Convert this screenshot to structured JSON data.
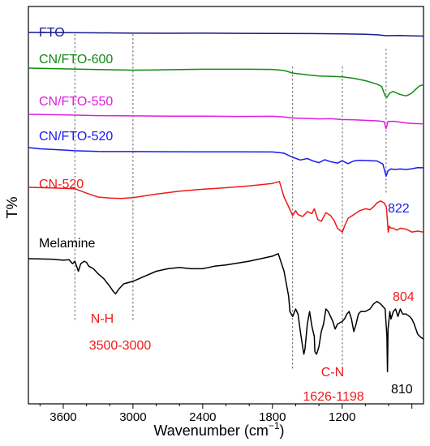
{
  "chart_data": {
    "type": "line",
    "xlabel": "Wavenumber (cm",
    "xlabel_sup": "−1",
    "xlabel_close": ")",
    "ylabel": "T%",
    "xlim": [
      3900,
      500
    ],
    "x_reversed": true,
    "x_ticks": [
      3600,
      3000,
      2400,
      1800,
      1200
    ],
    "x_tick_labels": [
      "3600",
      "3000",
      "2400",
      "1800",
      "1200"
    ],
    "y_axis_ticks": false,
    "grid": false,
    "legend": "none",
    "reference_lines_cm1": [
      3500,
      3000,
      1626,
      1198,
      822
    ],
    "series": [
      {
        "name": "FTO",
        "color": "#1a1a8c",
        "label_color": "#1a1a8c",
        "points": [
          [
            3900,
            0.0
          ],
          [
            3600,
            0.2
          ],
          [
            3300,
            0.6
          ],
          [
            3000,
            1.0
          ],
          [
            2700,
            1.1
          ],
          [
            2400,
            1.0
          ],
          [
            2100,
            1.2
          ],
          [
            1800,
            1.3
          ],
          [
            1500,
            1.6
          ],
          [
            1200,
            2.0
          ],
          [
            1000,
            2.6
          ],
          [
            900,
            3.2
          ],
          [
            822,
            4.5
          ],
          [
            700,
            4.2
          ],
          [
            600,
            4.8
          ],
          [
            500,
            5.0
          ]
        ]
      },
      {
        "name": "CN/FTO-600",
        "color": "#138a13",
        "label_color": "#138a13",
        "points": [
          [
            3900,
            0.0
          ],
          [
            3600,
            0.5
          ],
          [
            3300,
            1.0
          ],
          [
            3000,
            1.4
          ],
          [
            2800,
            1.2
          ],
          [
            2600,
            1.0
          ],
          [
            2400,
            0.8
          ],
          [
            2200,
            0.8
          ],
          [
            2000,
            0.8
          ],
          [
            1800,
            0.9
          ],
          [
            1700,
            1.6
          ],
          [
            1626,
            3.4
          ],
          [
            1500,
            4.6
          ],
          [
            1400,
            5.4
          ],
          [
            1300,
            5.6
          ],
          [
            1200,
            6.0
          ],
          [
            1100,
            7.0
          ],
          [
            1000,
            8.6
          ],
          [
            900,
            11.0
          ],
          [
            860,
            12.5
          ],
          [
            830,
            19.0
          ],
          [
            815,
            20.0
          ],
          [
            790,
            17.0
          ],
          [
            760,
            16.0
          ],
          [
            720,
            17.5
          ],
          [
            680,
            18.5
          ],
          [
            650,
            19.0
          ],
          [
            620,
            18.0
          ],
          [
            600,
            17.0
          ],
          [
            560,
            14.0
          ],
          [
            530,
            12.0
          ],
          [
            500,
            11.5
          ]
        ]
      },
      {
        "name": "CN/FTO-550",
        "color": "#e01ce0",
        "label_color": "#e01ce0",
        "points": [
          [
            3900,
            0.0
          ],
          [
            3600,
            0.4
          ],
          [
            3300,
            1.0
          ],
          [
            3000,
            1.2
          ],
          [
            2700,
            1.4
          ],
          [
            2400,
            1.4
          ],
          [
            2100,
            1.6
          ],
          [
            1800,
            1.5
          ],
          [
            1700,
            2.0
          ],
          [
            1626,
            2.8
          ],
          [
            1500,
            3.2
          ],
          [
            1400,
            3.5
          ],
          [
            1300,
            3.4
          ],
          [
            1200,
            4.0
          ],
          [
            1100,
            4.2
          ],
          [
            1000,
            4.6
          ],
          [
            900,
            5.0
          ],
          [
            840,
            5.6
          ],
          [
            822,
            11.0
          ],
          [
            805,
            5.5
          ],
          [
            750,
            5.4
          ],
          [
            700,
            6.0
          ],
          [
            650,
            6.6
          ],
          [
            600,
            7.0
          ],
          [
            550,
            7.2
          ],
          [
            500,
            7.3
          ]
        ]
      },
      {
        "name": "CN/FTO-520",
        "color": "#1a1aee",
        "label_color": "#1a1aee",
        "points": [
          [
            3900,
            0.0
          ],
          [
            3800,
            1.0
          ],
          [
            3600,
            2.0
          ],
          [
            3500,
            2.6
          ],
          [
            3300,
            3.2
          ],
          [
            3000,
            3.3
          ],
          [
            2700,
            3.4
          ],
          [
            2400,
            3.5
          ],
          [
            2100,
            3.5
          ],
          [
            1800,
            3.6
          ],
          [
            1700,
            4.6
          ],
          [
            1626,
            8.0
          ],
          [
            1560,
            10.2
          ],
          [
            1500,
            9.0
          ],
          [
            1450,
            11.0
          ],
          [
            1400,
            12.4
          ],
          [
            1350,
            10.0
          ],
          [
            1300,
            11.6
          ],
          [
            1240,
            12.8
          ],
          [
            1200,
            10.8
          ],
          [
            1150,
            13.2
          ],
          [
            1100,
            11.0
          ],
          [
            1050,
            10.4
          ],
          [
            1000,
            10.6
          ],
          [
            950,
            10.8
          ],
          [
            900,
            11.0
          ],
          [
            850,
            13.5
          ],
          [
            822,
            23.5
          ],
          [
            805,
            19.0
          ],
          [
            780,
            17.5
          ],
          [
            750,
            18.0
          ],
          [
            700,
            17.6
          ],
          [
            650,
            18.0
          ],
          [
            600,
            17.4
          ],
          [
            550,
            16.5
          ],
          [
            500,
            16.6
          ]
        ]
      },
      {
        "name": "CN-520",
        "color": "#ee1a1a",
        "label_color": "#ee1a1a",
        "points": [
          [
            3900,
            0.0
          ],
          [
            3700,
            0.6
          ],
          [
            3600,
            1.0
          ],
          [
            3500,
            1.4
          ],
          [
            3400,
            6.0
          ],
          [
            3300,
            10.0
          ],
          [
            3200,
            11.0
          ],
          [
            3100,
            11.4
          ],
          [
            3000,
            10.6
          ],
          [
            2800,
            7.0
          ],
          [
            2600,
            4.0
          ],
          [
            2400,
            2.0
          ],
          [
            2200,
            0.4
          ],
          [
            2000,
            -1.4
          ],
          [
            1800,
            -4.0
          ],
          [
            1740,
            -6.0
          ],
          [
            1700,
            10.0
          ],
          [
            1660,
            20.0
          ],
          [
            1626,
            29.0
          ],
          [
            1600,
            24.0
          ],
          [
            1580,
            28.0
          ],
          [
            1540,
            30.0
          ],
          [
            1500,
            25.0
          ],
          [
            1460,
            27.0
          ],
          [
            1440,
            22.0
          ],
          [
            1410,
            33.0
          ],
          [
            1380,
            35.0
          ],
          [
            1340,
            26.0
          ],
          [
            1300,
            29.0
          ],
          [
            1270,
            34.0
          ],
          [
            1240,
            42.0
          ],
          [
            1210,
            45.0
          ],
          [
            1198,
            46.0
          ],
          [
            1180,
            40.0
          ],
          [
            1150,
            32.0
          ],
          [
            1100,
            28.0
          ],
          [
            1050,
            24.0
          ],
          [
            1000,
            22.0
          ],
          [
            960,
            23.0
          ],
          [
            930,
            20.0
          ],
          [
            900,
            16.0
          ],
          [
            870,
            14.0
          ],
          [
            840,
            16.0
          ],
          [
            820,
            20.0
          ],
          [
            810,
            35.0
          ],
          [
            804,
            46.0
          ],
          [
            795,
            40.0
          ],
          [
            780,
            42.0
          ],
          [
            760,
            42.0
          ],
          [
            730,
            44.0
          ],
          [
            700,
            42.0
          ],
          [
            650,
            43.0
          ],
          [
            600,
            46.0
          ],
          [
            550,
            45.0
          ],
          [
            500,
            46.0
          ]
        ]
      },
      {
        "name": "Melamine",
        "color": "#000000",
        "label_color": "#000000",
        "points": [
          [
            3900,
            0.0
          ],
          [
            3700,
            0.4
          ],
          [
            3600,
            1.2
          ],
          [
            3550,
            0.8
          ],
          [
            3520,
            4.0
          ],
          [
            3500,
            2.0
          ],
          [
            3470,
            10.0
          ],
          [
            3450,
            4.0
          ],
          [
            3420,
            2.0
          ],
          [
            3400,
            3.0
          ],
          [
            3380,
            6.0
          ],
          [
            3340,
            8.0
          ],
          [
            3300,
            12.0
          ],
          [
            3250,
            16.0
          ],
          [
            3200,
            22.0
          ],
          [
            3170,
            26.0
          ],
          [
            3150,
            28.0
          ],
          [
            3120,
            24.0
          ],
          [
            3080,
            20.0
          ],
          [
            3000,
            18.0
          ],
          [
            2900,
            14.0
          ],
          [
            2800,
            10.0
          ],
          [
            2700,
            8.0
          ],
          [
            2600,
            7.0
          ],
          [
            2500,
            8.0
          ],
          [
            2400,
            8.0
          ],
          [
            2300,
            6.0
          ],
          [
            2200,
            5.0
          ],
          [
            2000,
            2.0
          ],
          [
            1900,
            0.0
          ],
          [
            1800,
            -2.0
          ],
          [
            1750,
            -4.0
          ],
          [
            1700,
            10.0
          ],
          [
            1660,
            30.0
          ],
          [
            1650,
            42.0
          ],
          [
            1626,
            46.0
          ],
          [
            1600,
            40.0
          ],
          [
            1580,
            44.0
          ],
          [
            1560,
            58.0
          ],
          [
            1540,
            70.0
          ],
          [
            1530,
            76.0
          ],
          [
            1520,
            72.0
          ],
          [
            1500,
            52.0
          ],
          [
            1480,
            42.0
          ],
          [
            1460,
            54.0
          ],
          [
            1440,
            62.0
          ],
          [
            1435,
            74.0
          ],
          [
            1420,
            76.0
          ],
          [
            1400,
            70.0
          ],
          [
            1380,
            58.0
          ],
          [
            1360,
            52.0
          ],
          [
            1340,
            40.0
          ],
          [
            1320,
            42.0
          ],
          [
            1300,
            46.0
          ],
          [
            1280,
            50.0
          ],
          [
            1260,
            56.0
          ],
          [
            1240,
            52.0
          ],
          [
            1200,
            50.0
          ],
          [
            1180,
            48.0
          ],
          [
            1160,
            44.0
          ],
          [
            1140,
            42.0
          ],
          [
            1120,
            48.0
          ],
          [
            1100,
            58.0
          ],
          [
            1080,
            52.0
          ],
          [
            1060,
            44.0
          ],
          [
            1040,
            42.0
          ],
          [
            1000,
            42.0
          ],
          [
            960,
            40.0
          ],
          [
            930,
            36.0
          ],
          [
            900,
            34.0
          ],
          [
            870,
            36.0
          ],
          [
            850,
            38.0
          ],
          [
            830,
            40.0
          ],
          [
            815,
            62.0
          ],
          [
            810,
            90.0
          ],
          [
            805,
            56.0
          ],
          [
            790,
            42.0
          ],
          [
            780,
            48.0
          ],
          [
            760,
            42.0
          ],
          [
            740,
            40.0
          ],
          [
            720,
            46.0
          ],
          [
            700,
            40.0
          ],
          [
            680,
            44.0
          ],
          [
            650,
            44.0
          ],
          [
            620,
            46.0
          ],
          [
            600,
            48.0
          ],
          [
            580,
            52.0
          ],
          [
            550,
            60.0
          ],
          [
            530,
            62.0
          ],
          [
            500,
            64.0
          ]
        ]
      }
    ],
    "annotations": [
      {
        "id": "822",
        "text": "822",
        "color": "#1a1aee"
      },
      {
        "id": "804",
        "text": "804",
        "color": "#ee1a1a"
      },
      {
        "id": "810",
        "text": "810",
        "color": "#000000"
      },
      {
        "id": "nh-label",
        "text": "N-H",
        "color": "#ee1a1a"
      },
      {
        "id": "nh-range",
        "text": "3500-3000",
        "color": "#ee1a1a"
      },
      {
        "id": "cn-label",
        "text": "C-N",
        "color": "#ee1a1a"
      },
      {
        "id": "cn-range",
        "text": "1626-1198",
        "color": "#ee1a1a"
      }
    ]
  }
}
